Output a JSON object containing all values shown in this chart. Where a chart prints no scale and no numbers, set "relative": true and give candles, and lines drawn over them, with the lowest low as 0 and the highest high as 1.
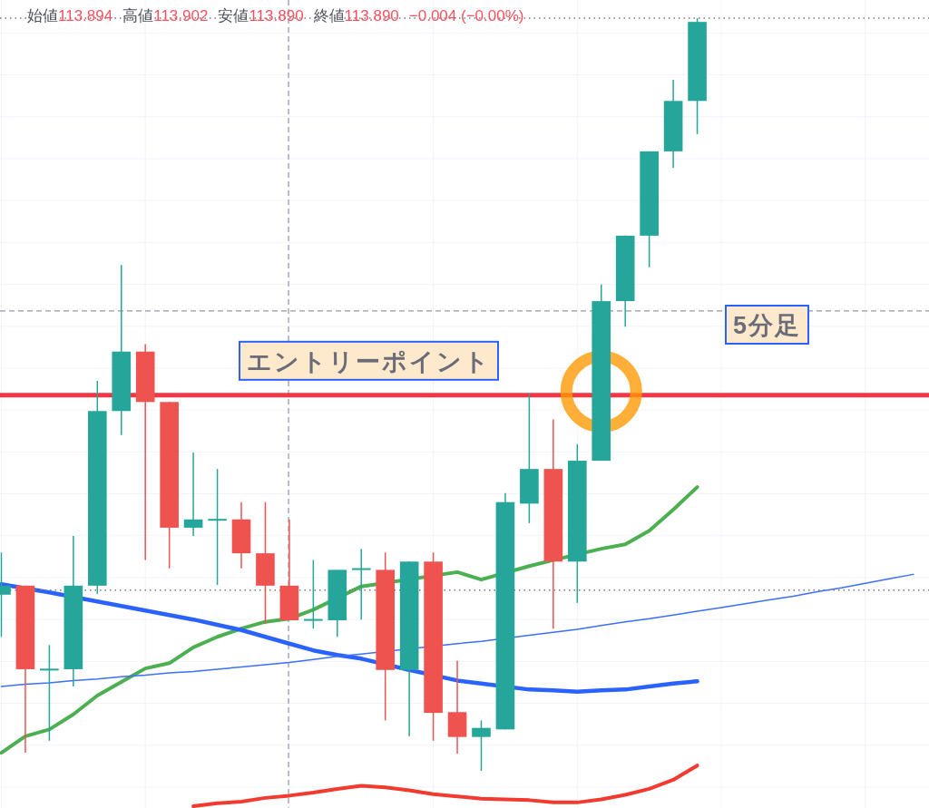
{
  "chart_data": {
    "type": "candlestick",
    "relative": true,
    "title": "5分足",
    "grid": true,
    "categories": [
      null,
      null,
      null,
      null,
      null,
      null,
      null,
      null,
      null,
      null,
      null,
      null,
      null,
      null,
      null,
      null,
      null,
      null,
      null,
      null,
      null,
      null,
      null,
      null,
      null,
      null,
      null,
      null,
      null,
      null,
      null,
      null,
      null,
      null,
      null,
      null,
      null,
      null,
      null
    ],
    "ohlc": [
      [
        0.234,
        0.29,
        0.178,
        0.246
      ],
      [
        0.246,
        0.246,
        0.024,
        0.135
      ],
      [
        0.134,
        0.167,
        0.04,
        0.135
      ],
      [
        0.135,
        0.312,
        0.112,
        0.246
      ],
      [
        0.246,
        0.518,
        0.235,
        0.478
      ],
      [
        0.478,
        0.672,
        0.446,
        0.557
      ],
      [
        0.557,
        0.567,
        0.28,
        0.49
      ],
      [
        0.49,
        0.49,
        0.269,
        0.323
      ],
      [
        0.323,
        0.423,
        0.312,
        0.334
      ],
      [
        0.333,
        0.401,
        0.247,
        0.334
      ],
      [
        0.334,
        0.357,
        0.269,
        0.289
      ],
      [
        0.289,
        0.357,
        0.195,
        0.246
      ],
      [
        0.246,
        0.334,
        0.2,
        0.2
      ],
      [
        0.2,
        0.28,
        0.189,
        0.201
      ],
      [
        0.2,
        0.267,
        0.178,
        0.267
      ],
      [
        0.267,
        0.295,
        0.201,
        0.269
      ],
      [
        0.267,
        0.29,
        0.067,
        0.134
      ],
      [
        0.134,
        0.278,
        0.046,
        0.278
      ],
      [
        0.278,
        0.29,
        0.04,
        0.077
      ],
      [
        0.078,
        0.146,
        0.023,
        0.045
      ],
      [
        0.045,
        0.067,
        0.0,
        0.057
      ],
      [
        0.055,
        0.369,
        0.055,
        0.357
      ],
      [
        0.355,
        0.501,
        0.329,
        0.401
      ],
      [
        0.401,
        0.467,
        0.189,
        0.278
      ],
      [
        0.278,
        0.434,
        0.223,
        0.412
      ],
      [
        0.412,
        0.646,
        0.412,
        0.624
      ],
      [
        0.624,
        0.711,
        0.59,
        0.711
      ],
      [
        0.711,
        0.823,
        0.669,
        0.823
      ],
      [
        0.823,
        0.918,
        0.801,
        0.89
      ],
      [
        0.89,
        1.0,
        0.846,
        0.995
      ],
      null,
      null,
      null,
      null,
      null,
      null,
      null,
      null,
      null
    ],
    "colors": [
      "#26a69a",
      "#ef5350",
      "#26a69a",
      "#26a69a",
      "#26a69a",
      "#26a69a",
      "#ef5350",
      "#ef5350",
      "#26a69a",
      "#26a69a",
      "#ef5350",
      "#ef5350",
      "#ef5350",
      "#26a69a",
      "#26a69a",
      "#26a69a",
      "#ef5350",
      "#26a69a",
      "#ef5350",
      "#ef5350",
      "#26a69a",
      "#26a69a",
      "#26a69a",
      "#ef5350",
      "#26a69a",
      "#26a69a",
      "#26a69a",
      "#26a69a",
      "#26a69a",
      "#26a69a",
      null,
      null,
      null,
      null,
      null,
      null,
      null,
      null,
      null
    ],
    "series": [
      {
        "type": "line",
        "color": "#4caf50",
        "values": [
          0.024,
          0.046,
          0.055,
          0.075,
          0.1,
          0.118,
          0.136,
          0.143,
          0.164,
          0.178,
          0.189,
          0.198,
          0.202,
          0.214,
          null,
          0.245,
          null,
          null,
          null,
          0.264,
          0.254,
          null,
          0.272,
          0.28,
          null,
          0.295,
          0.301,
          0.319,
          0.347,
          0.377,
          null,
          null,
          null,
          null,
          null,
          null,
          null,
          null,
          null
        ]
      },
      {
        "type": "line",
        "color": "#2962ff",
        "values": [
          0.248,
          null,
          0.237,
          null,
          0.225,
          0.219,
          0.213,
          0.207,
          0.201,
          0.194,
          0.187,
          0.178,
          0.169,
          0.16,
          0.154,
          0.149,
          null,
          0.134,
          null,
          0.12,
          0.116,
          null,
          0.108,
          0.107,
          0.105,
          0.107,
          0.108,
          0.112,
          0.116,
          0.119,
          null,
          null,
          null,
          null,
          null,
          null,
          null,
          null,
          null
        ]
      },
      {
        "type": "line",
        "color": "#3d6eff",
        "values": [
          0.112,
          0.115,
          0.117,
          0.12,
          0.122,
          0.125,
          0.127,
          0.13,
          0.132,
          0.135,
          0.138,
          0.141,
          0.144,
          0.148,
          0.152,
          0.155,
          null,
          null,
          null,
          0.169,
          0.172,
          null,
          0.18,
          0.184,
          0.188,
          0.193,
          0.198,
          0.202,
          0.207,
          0.212,
          0.217,
          0.222,
          0.227,
          0.232,
          0.238,
          0.243,
          0.249,
          0.255,
          0.261
        ]
      },
      {
        "type": "line",
        "color": "#f23a2f",
        "values": [
          null,
          null,
          null,
          null,
          null,
          null,
          null,
          null,
          -0.047,
          -0.043,
          -0.041,
          -0.036,
          -0.033,
          -0.029,
          -0.024,
          -0.02,
          -0.022,
          -0.026,
          -0.031,
          -0.034,
          -0.037,
          -0.038,
          -0.039,
          -0.042,
          -0.042,
          -0.038,
          -0.032,
          -0.024,
          -0.012,
          0.007,
          null,
          null,
          null,
          null,
          null,
          null,
          null,
          null,
          null
        ]
      }
    ],
    "ref_lines": [
      {
        "axis": "y",
        "value": 0.499,
        "label": "エントリーポイント",
        "color": "#f23645",
        "line_style": "solid"
      },
      {
        "axis": "y",
        "value": 0.611,
        "color": "#9598a1",
        "line_style": "dashed"
      },
      {
        "axis": "y",
        "value": 0.24,
        "color": "#787b86",
        "line_style": "dotted"
      },
      {
        "axis": "y",
        "value": 1.0,
        "color": "#787b86",
        "line_style": "dotted"
      }
    ],
    "annotations": [
      "始値113.894",
      "高値113.902",
      "安値113.890",
      "終値113.890",
      "−0.004 (−0.00%)"
    ]
  }
}
